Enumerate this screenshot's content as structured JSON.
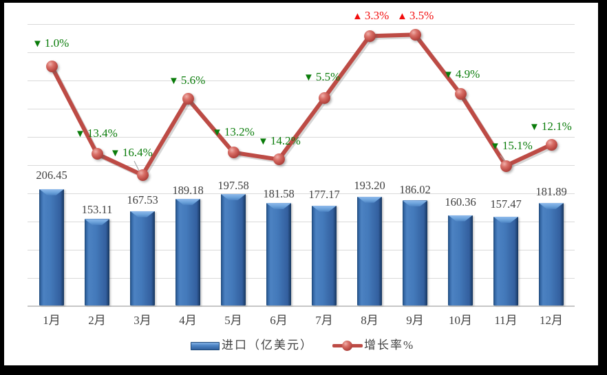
{
  "chart_data": {
    "type": "combo-bar-line",
    "categories": [
      "1月",
      "2月",
      "3月",
      "4月",
      "5月",
      "6月",
      "7月",
      "8月",
      "9月",
      "10月",
      "11月",
      "12月"
    ],
    "series": [
      {
        "name": "进口（亿美元）",
        "type": "bar",
        "color": "#3f76b6",
        "values": [
          206.45,
          153.11,
          167.53,
          189.18,
          197.58,
          181.58,
          177.17,
          193.2,
          186.02,
          160.36,
          157.47,
          181.89
        ],
        "value_labels": [
          "206.45",
          "153.11",
          "167.53",
          "189.18",
          "197.58",
          "181.58",
          "177.17",
          "193.20",
          "186.02",
          "160.36",
          "157.47",
          "181.89"
        ]
      },
      {
        "name": "增长率%",
        "type": "line",
        "color": "#bd4b45",
        "values": [
          -1.0,
          -13.4,
          -16.4,
          -5.6,
          -13.2,
          -14.2,
          -5.5,
          3.3,
          3.5,
          -4.9,
          -15.1,
          -12.1
        ],
        "point_labels": [
          {
            "symbol": "▼",
            "value": "1.0%",
            "direction": "down"
          },
          {
            "symbol": "▼",
            "value": "13.4%",
            "direction": "down"
          },
          {
            "symbol": "▼",
            "value": "16.4%",
            "direction": "down"
          },
          {
            "symbol": "▼",
            "value": "5.6%",
            "direction": "down"
          },
          {
            "symbol": "▼",
            "value": "13.2%",
            "direction": "down"
          },
          {
            "symbol": "▼",
            "value": "14.2%",
            "direction": "down"
          },
          {
            "symbol": "▼",
            "value": "5.5%",
            "direction": "down"
          },
          {
            "symbol": "▲",
            "value": "3.3%",
            "direction": "up"
          },
          {
            "symbol": "▲",
            "value": "3.5%",
            "direction": "up"
          },
          {
            "symbol": "▼",
            "value": "4.9%",
            "direction": "down"
          },
          {
            "symbol": "▼",
            "value": "15.1%",
            "direction": "down"
          },
          {
            "symbol": "▼",
            "value": "12.1%",
            "direction": "down"
          }
        ]
      }
    ],
    "axes": {
      "primary_value_axis": {
        "min": 0,
        "max": 500,
        "major_unit": 50,
        "labels_visible": false
      },
      "secondary_percent_axis": {
        "min": -35,
        "max": 5,
        "major_unit": 4,
        "labels_visible": false
      },
      "gridlines": true
    },
    "legend": {
      "position": "bottom",
      "items": [
        "进口（亿美元）",
        "增长率%"
      ]
    }
  },
  "colors": {
    "frame": "#000000",
    "background": "#ffffff",
    "gridline": "#d9d9d9",
    "axis_line": "#c6c6c6",
    "bar_fill": "#3f76b6",
    "bar_edge": "#1d4878",
    "line": "#bd4b45",
    "marker": "#c0504d",
    "down_label": "#0a7c0a",
    "up_label": "#f20d0d",
    "text": "#3f3f3f",
    "leader_line": "#a6a6a6"
  }
}
